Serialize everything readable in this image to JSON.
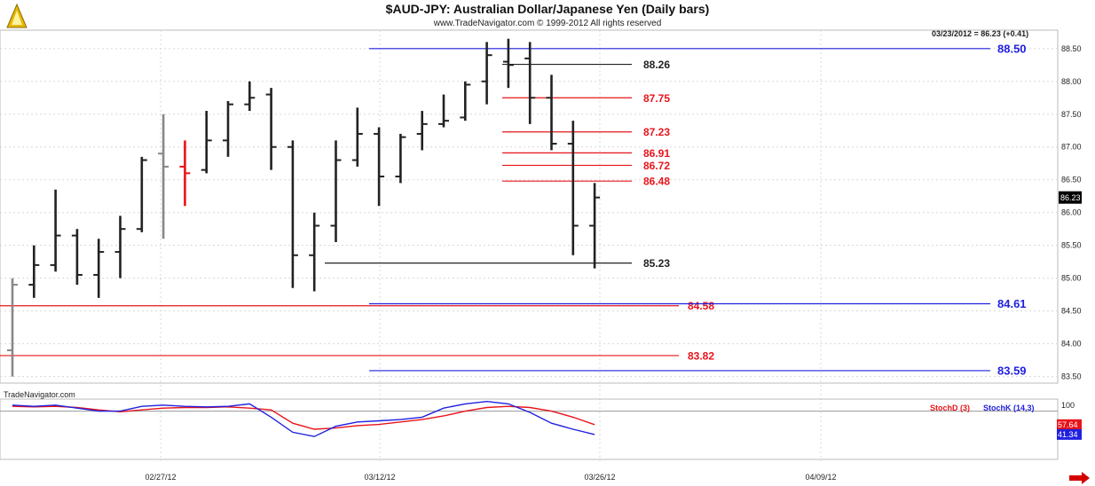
{
  "header": {
    "title": "$AUD-JPY:  Australian Dollar/Japanese Yen  (Daily bars)",
    "subtitle": "www.TradeNavigator.com © 1999-2012 All rights reserved",
    "quote": "03/23/2012 = 86.23 (+0.41)",
    "watermark": "TradeNavigator.com"
  },
  "colors": {
    "bar": "#000000",
    "red": "#e8141a",
    "blue": "#2020e0",
    "grid": "#d8d8d8",
    "ref": "#555555"
  },
  "chart_data": [
    {
      "type": "bar",
      "subtype": "ohlc",
      "ylim": [
        83.4,
        88.7
      ],
      "y_ticks": [
        "88.50",
        "88.00",
        "87.50",
        "87.00",
        "86.50",
        "86.00",
        "85.50",
        "85.00",
        "84.50",
        "84.00",
        "83.50"
      ],
      "x_tick_labels": [
        "02/27/12",
        "03/12/12",
        "03/26/12",
        "04/09/12"
      ],
      "last_price_label": "86.23",
      "bars": [
        {
          "o": 83.9,
          "h": 85.0,
          "l": 83.5,
          "c": 84.9,
          "color": "gray"
        },
        {
          "o": 84.9,
          "h": 85.5,
          "l": 84.7,
          "c": 85.2
        },
        {
          "o": 85.2,
          "h": 86.35,
          "l": 85.1,
          "c": 85.65
        },
        {
          "o": 85.65,
          "h": 85.75,
          "l": 84.9,
          "c": 85.05
        },
        {
          "o": 85.05,
          "h": 85.6,
          "l": 84.7,
          "c": 85.4
        },
        {
          "o": 85.4,
          "h": 85.95,
          "l": 85.0,
          "c": 85.75
        },
        {
          "o": 85.75,
          "h": 86.85,
          "l": 85.7,
          "c": 86.8
        },
        {
          "o": 86.9,
          "h": 87.5,
          "l": 85.6,
          "c": 86.7,
          "color": "gray"
        },
        {
          "o": 86.7,
          "h": 87.1,
          "l": 86.1,
          "c": 86.6,
          "color": "red"
        },
        {
          "o": 86.65,
          "h": 87.55,
          "l": 86.6,
          "c": 87.1
        },
        {
          "o": 87.1,
          "h": 87.7,
          "l": 86.85,
          "c": 87.65
        },
        {
          "o": 87.65,
          "h": 88.0,
          "l": 87.55,
          "c": 87.75
        },
        {
          "o": 87.8,
          "h": 87.9,
          "l": 86.65,
          "c": 87.0
        },
        {
          "o": 87.0,
          "h": 87.1,
          "l": 84.85,
          "c": 85.35
        },
        {
          "o": 85.35,
          "h": 86.0,
          "l": 84.8,
          "c": 85.8
        },
        {
          "o": 85.8,
          "h": 87.1,
          "l": 85.55,
          "c": 86.8
        },
        {
          "o": 86.8,
          "h": 87.6,
          "l": 86.7,
          "c": 87.2
        },
        {
          "o": 87.2,
          "h": 87.3,
          "l": 86.1,
          "c": 86.55
        },
        {
          "o": 86.55,
          "h": 87.2,
          "l": 86.45,
          "c": 87.15
        },
        {
          "o": 87.2,
          "h": 87.55,
          "l": 86.95,
          "c": 87.35
        },
        {
          "o": 87.35,
          "h": 87.8,
          "l": 87.3,
          "c": 87.4
        },
        {
          "o": 87.45,
          "h": 88.0,
          "l": 87.4,
          "c": 87.95
        },
        {
          "o": 88.0,
          "h": 88.6,
          "l": 87.65,
          "c": 88.4
        },
        {
          "o": 88.3,
          "h": 88.65,
          "l": 87.9,
          "c": 88.25
        },
        {
          "o": 88.35,
          "h": 88.6,
          "l": 87.35,
          "c": 87.75
        },
        {
          "o": 87.75,
          "h": 88.1,
          "l": 86.95,
          "c": 87.05
        },
        {
          "o": 87.05,
          "h": 87.4,
          "l": 85.35,
          "c": 85.8
        },
        {
          "o": 85.8,
          "h": 86.45,
          "l": 85.15,
          "c": 86.23
        }
      ],
      "levels": [
        {
          "value": 88.5,
          "label": "88.50",
          "color": "blue",
          "extent": "long"
        },
        {
          "value": 88.26,
          "label": "88.26",
          "color": "black",
          "extent": "short"
        },
        {
          "value": 87.75,
          "label": "87.75",
          "color": "red",
          "extent": "short"
        },
        {
          "value": 87.23,
          "label": "87.23",
          "color": "red",
          "extent": "short"
        },
        {
          "value": 86.91,
          "label": "86.91",
          "color": "red",
          "extent": "short"
        },
        {
          "value": 86.72,
          "label": "86.72",
          "color": "red",
          "extent": "short"
        },
        {
          "value": 86.48,
          "label": "86.48",
          "color": "red",
          "extent": "short"
        },
        {
          "value": 85.23,
          "label": "85.23",
          "color": "black",
          "extent": "mid"
        },
        {
          "value": 84.58,
          "label": "84.58",
          "color": "red",
          "extent": "full"
        },
        {
          "value": 84.61,
          "label": "84.61",
          "color": "blue",
          "extent": "long"
        },
        {
          "value": 83.82,
          "label": "83.82",
          "color": "red",
          "extent": "full"
        },
        {
          "value": 83.59,
          "label": "83.59",
          "color": "blue",
          "extent": "long"
        }
      ]
    },
    {
      "type": "line",
      "ylim": [
        0,
        100
      ],
      "y_ticks": [
        "100"
      ],
      "series": [
        {
          "name": "StochD (3)",
          "color": "red",
          "last_label": "57.64",
          "values": [
            88,
            87,
            88,
            86,
            82,
            79,
            82,
            85,
            86,
            86,
            87,
            85,
            82,
            60,
            50,
            52,
            56,
            58,
            62,
            66,
            72,
            80,
            86,
            88,
            86,
            80,
            70,
            57.64
          ]
        },
        {
          "name": "StochK (14,3)",
          "color": "blue",
          "last_label": "41.34",
          "values": [
            90,
            88,
            90,
            85,
            80,
            80,
            88,
            90,
            88,
            87,
            88,
            92,
            70,
            45,
            38,
            55,
            62,
            64,
            66,
            70,
            85,
            92,
            96,
            92,
            78,
            60,
            50,
            41.34
          ]
        }
      ]
    }
  ]
}
